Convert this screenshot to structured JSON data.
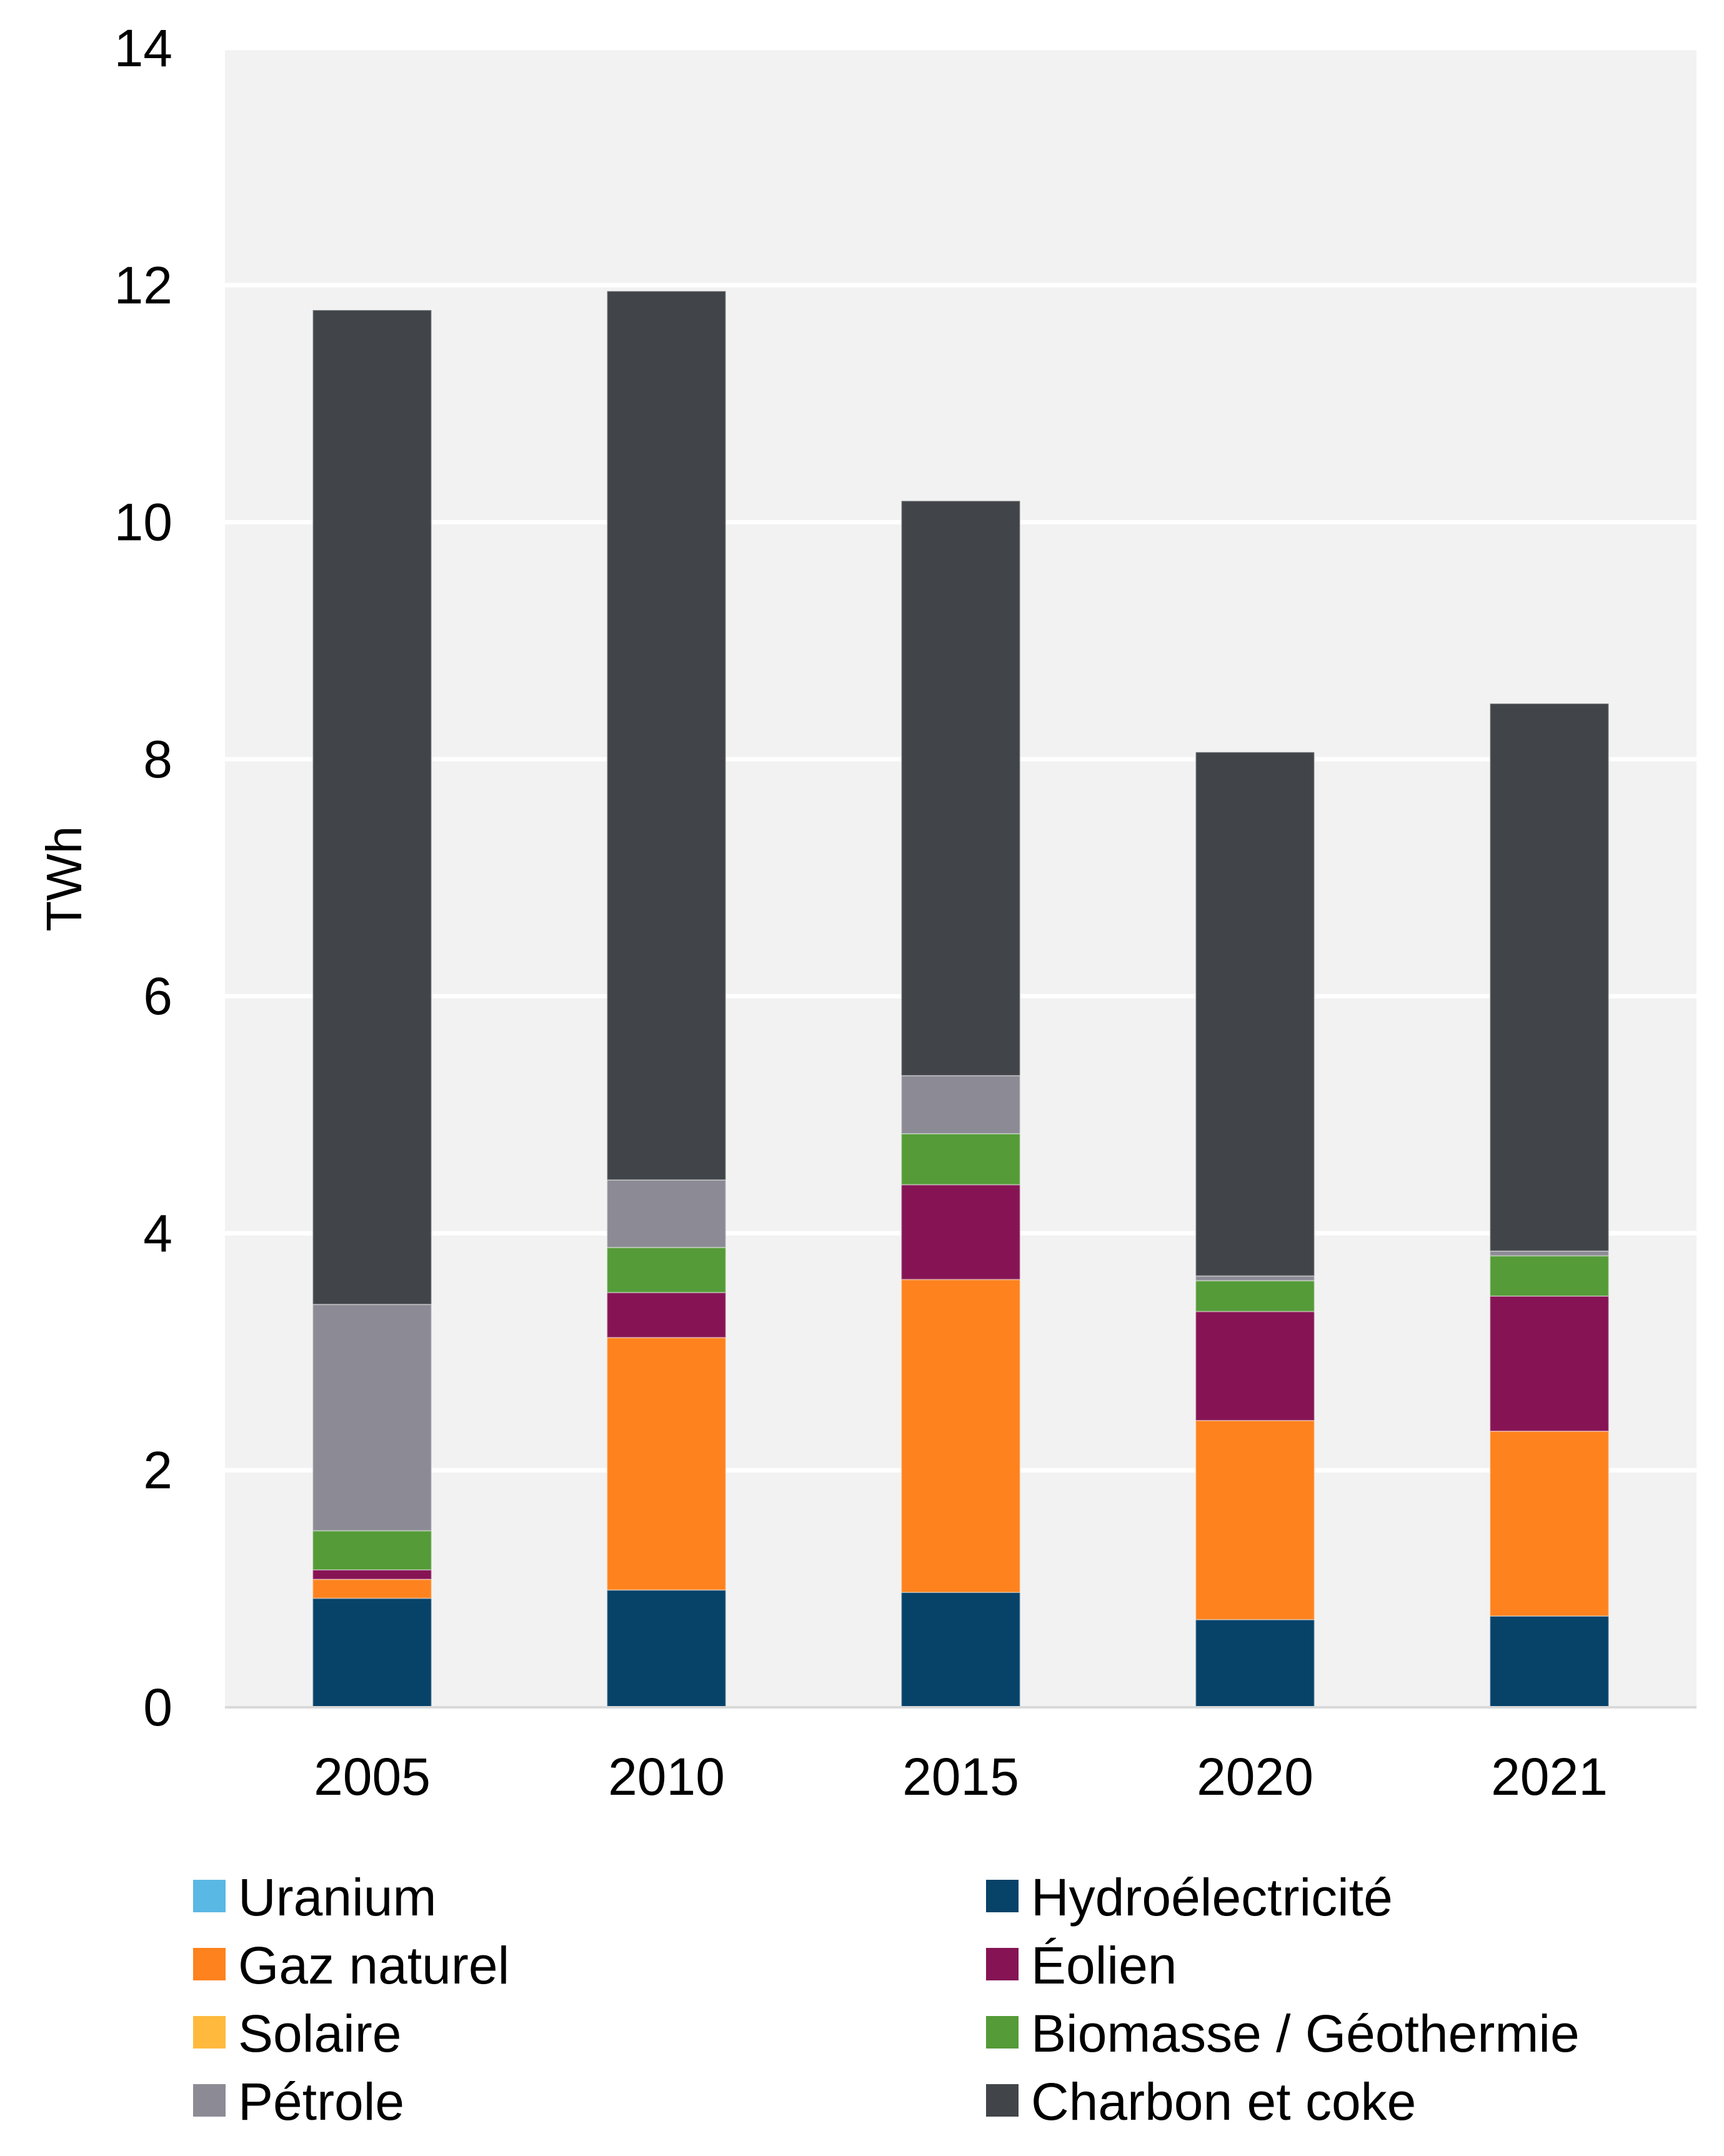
{
  "chart_data": {
    "type": "bar",
    "stacked": true,
    "title": "",
    "xlabel": "",
    "ylabel": "TWh",
    "ylim": [
      0,
      14
    ],
    "yticks": [
      0,
      2,
      4,
      6,
      8,
      10,
      12,
      14
    ],
    "grid": true,
    "legend_position": "bottom",
    "categories": [
      "2005",
      "2010",
      "2015",
      "2020",
      "2021"
    ],
    "series": [
      {
        "name": "Uranium",
        "color": "#5ab8e4",
        "values": [
          0,
          0,
          0,
          0,
          0
        ]
      },
      {
        "name": "Hydroélectricité",
        "color": "#074269",
        "values": [
          0.92,
          0.99,
          0.97,
          0.74,
          0.77
        ]
      },
      {
        "name": "Gaz naturel",
        "color": "#fe821e",
        "values": [
          0.16,
          2.13,
          2.64,
          1.68,
          1.56
        ]
      },
      {
        "name": "Éolien",
        "color": "#861455",
        "values": [
          0.08,
          0.38,
          0.8,
          0.92,
          1.14
        ]
      },
      {
        "name": "Solaire",
        "color": "#ffba3d",
        "values": [
          0,
          0,
          0,
          0,
          0
        ]
      },
      {
        "name": "Biomasse / Géothermie",
        "color": "#559b38",
        "values": [
          0.33,
          0.38,
          0.43,
          0.26,
          0.34
        ]
      },
      {
        "name": "Pétrole",
        "color": "#8c8b95",
        "values": [
          1.91,
          0.57,
          0.49,
          0.04,
          0.04
        ]
      },
      {
        "name": "Charbon et coke",
        "color": "#414549",
        "values": [
          8.39,
          7.5,
          4.85,
          4.42,
          4.62
        ]
      }
    ],
    "legend_order": [
      "Uranium",
      "Hydroélectricité",
      "Gaz naturel",
      "Éolien",
      "Solaire",
      "Biomasse / Géothermie",
      "Pétrole",
      "Charbon et coke"
    ]
  }
}
